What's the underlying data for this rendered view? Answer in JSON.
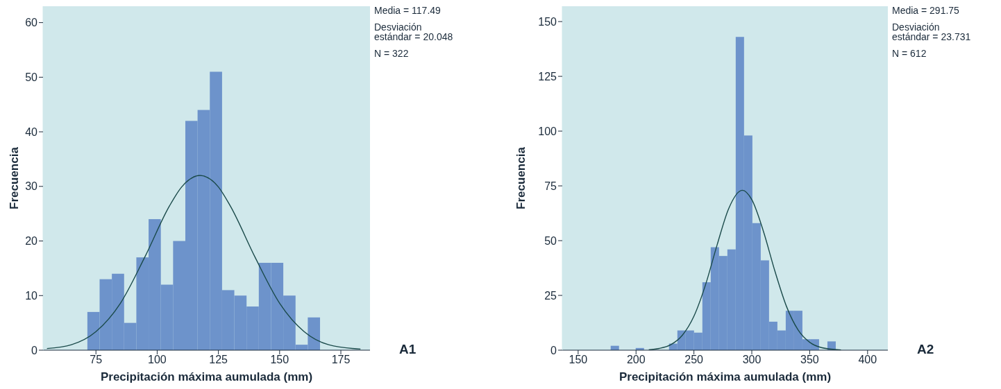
{
  "chart_data": [
    {
      "type": "histogram",
      "xlabel": "Precipitación máxima aumulada (mm)",
      "ylabel": "Frecuencia",
      "xlim": [
        53.4,
        186.9
      ],
      "xticks": [
        75,
        100,
        125,
        150,
        175
      ],
      "ylim": [
        0,
        63
      ],
      "yticks": [
        0,
        10,
        20,
        30,
        40,
        50,
        60
      ],
      "annotations": [
        "Media = 117.49",
        "Desviación estándar = 20.048",
        "N = 322",
        "A1"
      ],
      "series": [
        {
          "type": "histogram",
          "color": "#6d93cb",
          "bins": [
            71.5,
            76.5,
            81.5,
            86.5,
            91.5,
            96.5,
            101.5,
            106.5,
            111.5,
            116.5,
            121.5,
            126.5,
            131.5,
            136.5,
            141.5,
            146.5,
            151.5,
            156.5,
            161.5,
            166.5
          ],
          "values": [
            7,
            13,
            14,
            5,
            17,
            24,
            12,
            20,
            42,
            44,
            51,
            11,
            10,
            8,
            16,
            16,
            10,
            1,
            6
          ]
        },
        {
          "type": "line",
          "color": "#1a4a4a",
          "x": [
            55,
            65,
            75,
            85,
            95,
            105,
            110,
            117.5,
            125,
            130,
            140,
            150,
            160,
            170,
            183
          ],
          "values": [
            0.3,
            1,
            3.4,
            8.6,
            17.1,
            26.4,
            29.9,
            32,
            29.9,
            26.3,
            17,
            8.6,
            3.4,
            1,
            0.2
          ]
        }
      ]
    },
    {
      "type": "histogram",
      "xlabel": "Precipitación máxima aumulada (mm)",
      "ylabel": "Frecuencia",
      "xlim": [
        136.3,
        417.5
      ],
      "xticks": [
        150,
        200,
        250,
        300,
        350,
        400
      ],
      "ylim": [
        0,
        157
      ],
      "yticks": [
        0,
        25,
        50,
        75,
        100,
        125,
        150
      ],
      "annotations": [
        "Media = 291.75",
        "Desviación estándar = 23.731",
        "N = 612",
        "A2"
      ],
      "series": [
        {
          "type": "histogram",
          "color": "#6d93cb",
          "bins": [
            178.1,
            185.3,
            192.5,
            199.7,
            206.9,
            214.1,
            221.3,
            228.5,
            235.7,
            242.9,
            250.1,
            257.3,
            264.5,
            271.7,
            278.9,
            286.1,
            293.3,
            300.5,
            307.7,
            314.9,
            322.1,
            329.3,
            336.5,
            343.7,
            350.9,
            358.1,
            365.3,
            372.5
          ],
          "values": [
            2,
            0,
            0,
            1,
            0,
            0,
            0,
            3,
            9,
            9,
            8,
            31,
            47,
            43,
            46,
            143,
            98,
            58,
            41,
            13,
            9,
            18,
            18,
            5,
            5,
            0,
            4
          ]
        },
        {
          "type": "line",
          "color": "#1a4a4a",
          "x": [
            211,
            220,
            230,
            240,
            250,
            260,
            270,
            280,
            291.75,
            300,
            310,
            320,
            330,
            340,
            350,
            360,
            377
          ],
          "values": [
            0.2,
            0.8,
            2.5,
            6.8,
            15.5,
            29.8,
            48,
            64.6,
            73,
            68.7,
            54.3,
            36,
            19.9,
            9.2,
            3.6,
            1.2,
            0.1
          ]
        }
      ]
    }
  ]
}
